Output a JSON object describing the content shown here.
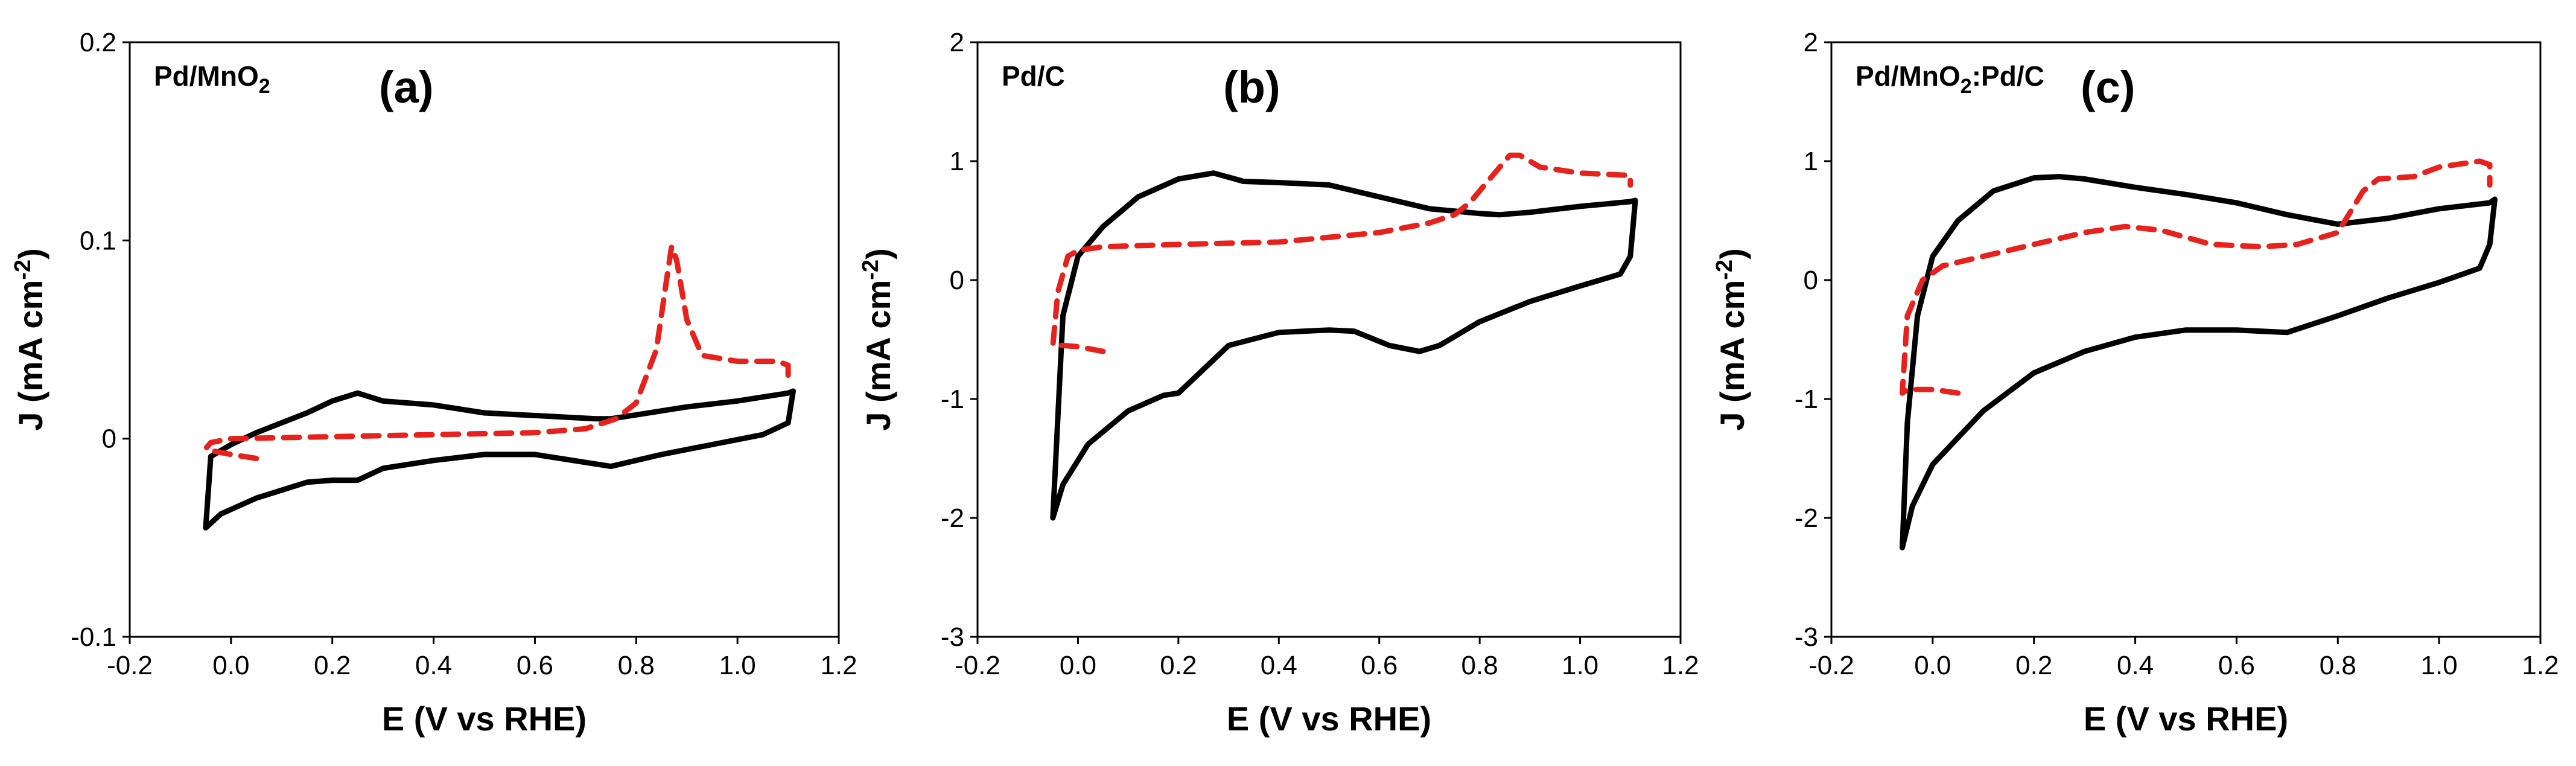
{
  "colors": {
    "anodic_sweep": "#e8211c",
    "cathodic_sweep": "#000000"
  },
  "chart_data": [
    {
      "type": "line",
      "panel": "(a)",
      "sample": {
        "main": "Pd/MnO",
        "sub": "2",
        "rest": ""
      },
      "xlabel": "E (V vs RHE)",
      "ylabel": {
        "main": "J (mA cm",
        "sup": "-2",
        "rest": ")"
      },
      "xlim": [
        -0.2,
        1.2
      ],
      "ylim": [
        -0.1,
        0.2
      ],
      "xticks": [
        "-0.2",
        "0.0",
        "0.2",
        "0.4",
        "0.6",
        "0.8",
        "1.0",
        "1.2"
      ],
      "yticks": [
        "-0.1",
        "0",
        "0.1",
        "0.2"
      ],
      "series": [
        {
          "name": "solid black loop",
          "style": "solid",
          "color": "#000000",
          "x": [
            -0.05,
            -0.02,
            0.05,
            0.15,
            0.2,
            0.25,
            0.3,
            0.4,
            0.5,
            0.6,
            0.7,
            0.75,
            0.85,
            0.95,
            1.05,
            1.1,
            1.11,
            1.1,
            1.05,
            1.0,
            0.9,
            0.8,
            0.75,
            0.72,
            0.65,
            0.5,
            0.4,
            0.3,
            0.25,
            0.2,
            0.15,
            0.1,
            0.05,
            0.0,
            -0.04,
            -0.05
          ],
          "y": [
            -0.045,
            -0.038,
            -0.03,
            -0.022,
            -0.021,
            -0.021,
            -0.015,
            -0.011,
            -0.008,
            -0.008,
            -0.012,
            -0.014,
            -0.008,
            -0.003,
            0.002,
            0.008,
            0.024,
            0.023,
            0.021,
            0.019,
            0.016,
            0.012,
            0.01,
            0.01,
            0.011,
            0.013,
            0.017,
            0.019,
            0.023,
            0.019,
            0.013,
            0.008,
            0.003,
            -0.003,
            -0.009,
            -0.045
          ]
        },
        {
          "name": "dashed red sweep",
          "style": "dashed",
          "color": "#e8211c",
          "x": [
            0.05,
            0.0,
            -0.04,
            -0.05,
            -0.04,
            0.0,
            0.2,
            0.4,
            0.6,
            0.7,
            0.76,
            0.8,
            0.84,
            0.86,
            0.87,
            0.88,
            0.9,
            0.93,
            1.0,
            1.08,
            1.1,
            1.1
          ],
          "y": [
            -0.01,
            -0.008,
            -0.006,
            -0.005,
            -0.002,
            0.0,
            0.001,
            0.002,
            0.003,
            0.005,
            0.01,
            0.018,
            0.045,
            0.08,
            0.097,
            0.09,
            0.06,
            0.042,
            0.039,
            0.039,
            0.037,
            0.032
          ]
        }
      ]
    },
    {
      "type": "line",
      "panel": "(b)",
      "sample": {
        "main": "Pd/C",
        "sub": "",
        "rest": ""
      },
      "xlabel": "E (V vs RHE)",
      "ylabel": {
        "main": "J (mA cm",
        "sup": "-2",
        "rest": ")"
      },
      "xlim": [
        -0.2,
        1.2
      ],
      "ylim": [
        -3,
        2
      ],
      "xticks": [
        "-0.2",
        "0.0",
        "0.2",
        "0.4",
        "0.6",
        "0.8",
        "1.0",
        "1.2"
      ],
      "yticks": [
        "-3",
        "-2",
        "-1",
        "0",
        "1",
        "2"
      ],
      "series": [
        {
          "name": "solid black loop",
          "style": "solid",
          "color": "#000000",
          "x": [
            -0.05,
            -0.03,
            0.02,
            0.1,
            0.17,
            0.2,
            0.25,
            0.3,
            0.4,
            0.5,
            0.55,
            0.62,
            0.68,
            0.72,
            0.8,
            0.9,
            1.0,
            1.08,
            1.1,
            1.11,
            1.1,
            1.0,
            0.9,
            0.84,
            0.8,
            0.7,
            0.6,
            0.5,
            0.4,
            0.33,
            0.27,
            0.2,
            0.12,
            0.05,
            0.0,
            -0.03,
            -0.05
          ],
          "y": [
            -2.0,
            -1.72,
            -1.38,
            -1.1,
            -0.97,
            -0.95,
            -0.75,
            -0.55,
            -0.44,
            -0.42,
            -0.43,
            -0.55,
            -0.6,
            -0.55,
            -0.35,
            -0.18,
            -0.05,
            0.05,
            0.2,
            0.67,
            0.66,
            0.62,
            0.57,
            0.55,
            0.56,
            0.6,
            0.7,
            0.8,
            0.82,
            0.83,
            0.9,
            0.85,
            0.7,
            0.45,
            0.2,
            -0.3,
            -2.0
          ]
        },
        {
          "name": "dashed red sweep",
          "style": "dashed",
          "color": "#e8211c",
          "x": [
            0.05,
            0.0,
            -0.03,
            -0.05,
            -0.04,
            -0.02,
            0.0,
            0.05,
            0.2,
            0.4,
            0.6,
            0.7,
            0.75,
            0.78,
            0.82,
            0.86,
            0.88,
            0.92,
            1.0,
            1.1,
            1.1
          ],
          "y": [
            -0.6,
            -0.56,
            -0.55,
            -0.55,
            -0.1,
            0.2,
            0.25,
            0.28,
            0.3,
            0.32,
            0.4,
            0.48,
            0.55,
            0.65,
            0.85,
            1.05,
            1.05,
            0.95,
            0.9,
            0.88,
            0.8
          ]
        }
      ]
    },
    {
      "type": "line",
      "panel": "(c)",
      "sample": {
        "main": "Pd/MnO",
        "sub": "2",
        "rest": ":Pd/C"
      },
      "xlabel": "E (V vs RHE)",
      "ylabel": {
        "main": "J (mA cm",
        "sup": "-2",
        "rest": ")"
      },
      "xlim": [
        -0.2,
        1.2
      ],
      "ylim": [
        -3,
        2
      ],
      "xticks": [
        "-0.2",
        "0.0",
        "0.2",
        "0.4",
        "0.6",
        "0.8",
        "1.0",
        "1.2"
      ],
      "yticks": [
        "-3",
        "-2",
        "-1",
        "0",
        "1",
        "2"
      ],
      "series": [
        {
          "name": "solid black loop",
          "style": "solid",
          "color": "#000000",
          "x": [
            -0.06,
            -0.04,
            0.0,
            0.1,
            0.2,
            0.3,
            0.4,
            0.5,
            0.6,
            0.7,
            0.8,
            0.9,
            1.0,
            1.08,
            1.1,
            1.11,
            1.1,
            1.0,
            0.9,
            0.8,
            0.7,
            0.6,
            0.5,
            0.4,
            0.3,
            0.25,
            0.2,
            0.12,
            0.05,
            0.0,
            -0.03,
            -0.05,
            -0.06
          ],
          "y": [
            -2.25,
            -1.9,
            -1.55,
            -1.1,
            -0.78,
            -0.6,
            -0.48,
            -0.42,
            -0.42,
            -0.44,
            -0.3,
            -0.15,
            -0.02,
            0.1,
            0.3,
            0.68,
            0.65,
            0.6,
            0.52,
            0.47,
            0.55,
            0.65,
            0.72,
            0.78,
            0.85,
            0.87,
            0.86,
            0.75,
            0.5,
            0.2,
            -0.3,
            -1.2,
            -2.25
          ]
        },
        {
          "name": "dashed red sweep",
          "style": "dashed",
          "color": "#e8211c",
          "x": [
            0.05,
            0.0,
            -0.05,
            -0.06,
            -0.05,
            -0.02,
            0.02,
            0.1,
            0.2,
            0.3,
            0.38,
            0.45,
            0.55,
            0.65,
            0.72,
            0.8,
            0.85,
            0.88,
            0.95,
            1.0,
            1.08,
            1.1,
            1.1
          ],
          "y": [
            -0.95,
            -0.92,
            -0.92,
            -0.95,
            -0.3,
            0.0,
            0.12,
            0.2,
            0.3,
            0.4,
            0.45,
            0.42,
            0.3,
            0.28,
            0.3,
            0.4,
            0.75,
            0.85,
            0.87,
            0.95,
            1.0,
            0.97,
            0.8
          ]
        }
      ]
    }
  ]
}
